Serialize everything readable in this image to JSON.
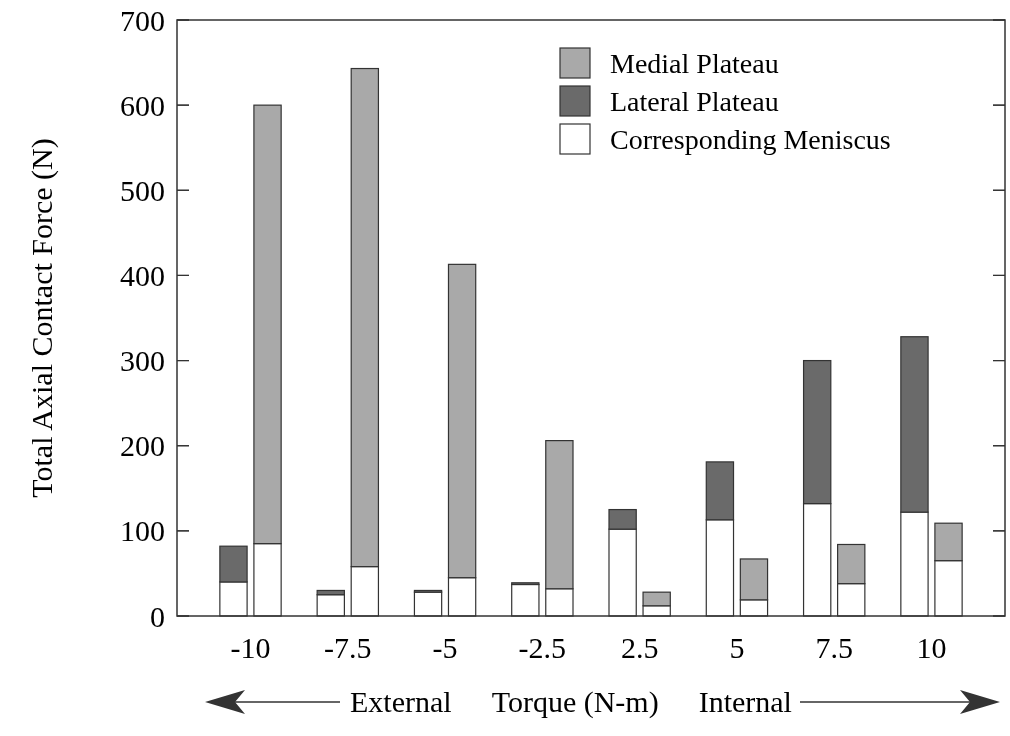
{
  "chart_data": [
    {
      "type": "bar",
      "stacked": true,
      "xlabel": "External   Torque (N-m)   Internal",
      "ylabel": "Total Axial Contact Force (N)",
      "categories": [
        "-10",
        "-7.5",
        "-5",
        "-2.5",
        "2.5",
        "5",
        "7.5",
        "10"
      ],
      "series": [
        {
          "name": "Corresponding Meniscus",
          "color": "#ffffff",
          "values": [
            40,
            25,
            28,
            37,
            102,
            113,
            132,
            122
          ]
        },
        {
          "name": "Lateral Plateau",
          "color": "#6a6a6a",
          "values": [
            42,
            5,
            2,
            2,
            23,
            68,
            168,
            206
          ]
        }
      ],
      "ylim": [
        0,
        700
      ],
      "yticks": [
        0,
        100,
        200,
        300,
        400,
        500,
        600,
        700
      ],
      "legend": "top right"
    },
    {
      "type": "bar",
      "stacked": true,
      "categories": [
        "-10",
        "-7.5",
        "-5",
        "-2.5",
        "2.5",
        "5",
        "7.5",
        "10"
      ],
      "series": [
        {
          "color": "#ffffff",
          "values": [
            85,
            58,
            45,
            32,
            12,
            19,
            38,
            65
          ]
        },
        {
          "name": "Medial Plateau",
          "color": "#a9a9a9",
          "values": [
            515,
            585,
            368,
            174,
            16,
            48,
            46,
            44
          ]
        }
      ],
      "ylim": [
        0,
        700
      ],
      "yticks": [
        0,
        100,
        200,
        300,
        400,
        500,
        600,
        700
      ],
      "tick_labels": false,
      "legend": "top right"
    }
  ]
}
